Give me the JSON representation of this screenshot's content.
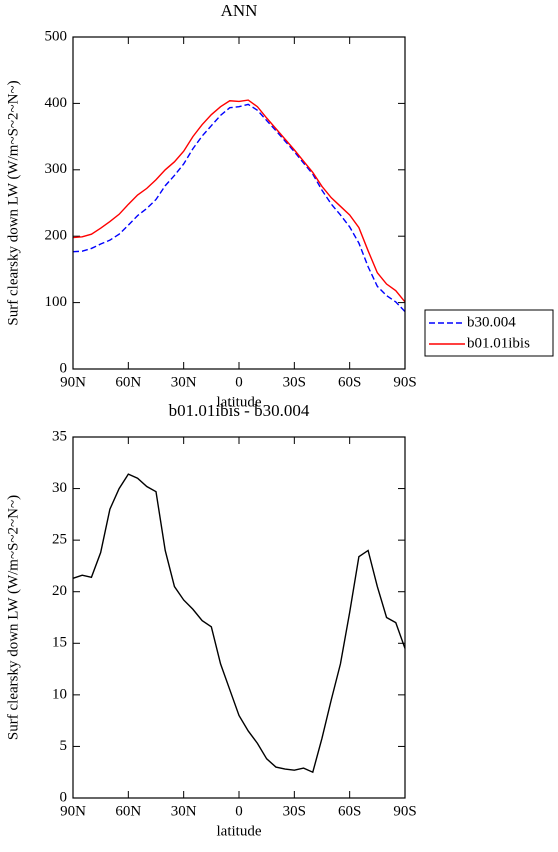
{
  "chart_data": [
    {
      "type": "line",
      "title": "ANN",
      "xlabel": "latitude",
      "ylabel": "Surf clearsky down LW (W/m~S~2~N~)",
      "x": [
        90,
        85,
        80,
        75,
        70,
        65,
        60,
        55,
        50,
        45,
        40,
        35,
        30,
        25,
        20,
        15,
        10,
        5,
        0,
        -5,
        -10,
        -15,
        -20,
        -25,
        -30,
        -35,
        -40,
        -45,
        -50,
        -55,
        -60,
        -65,
        -70,
        -75,
        -80,
        -85,
        -90
      ],
      "xlim": [
        90,
        -90
      ],
      "xticks": [
        {
          "value": 90,
          "label": "90N"
        },
        {
          "value": 60,
          "label": "60N"
        },
        {
          "value": 30,
          "label": "30N"
        },
        0,
        {
          "value": -30,
          "label": "30S"
        },
        {
          "value": -60,
          "label": "60S"
        },
        {
          "value": -90,
          "label": "90S"
        }
      ],
      "ylim": [
        0,
        500
      ],
      "yticks": [
        0,
        100,
        200,
        300,
        400,
        500
      ],
      "legend": "right",
      "series": [
        {
          "name": "b30.004",
          "color": "#0000ff",
          "dash": true,
          "values": [
            176.7,
            177.4,
            181.6,
            188.2,
            194,
            203,
            216.6,
            231,
            241.8,
            255.3,
            276,
            291.5,
            308.8,
            331.7,
            350.8,
            366.4,
            382,
            393.5,
            395,
            398.5,
            389.7,
            374.2,
            359,
            343.2,
            327.3,
            310.1,
            293.5,
            269.2,
            248.5,
            232,
            214,
            189.6,
            154,
            124.5,
            110.5,
            101,
            86.5
          ]
        },
        {
          "name": "b01.01ibis",
          "color": "#ff0000",
          "dash": false,
          "values": [
            198,
            199,
            203,
            212,
            222,
            233,
            248,
            262,
            272,
            285,
            300,
            312,
            328,
            350,
            368,
            383,
            395,
            404,
            403,
            405,
            395,
            378,
            362,
            346,
            330,
            313,
            296,
            275,
            258,
            245,
            232,
            213,
            178,
            145,
            128,
            118,
            101
          ]
        }
      ]
    },
    {
      "type": "line",
      "title": "b01.01ibis - b30.004",
      "xlabel": "latitude",
      "ylabel": "Surf clearsky down LW (W/m~S~2~N~)",
      "x": [
        90,
        85,
        80,
        75,
        70,
        65,
        60,
        55,
        50,
        45,
        40,
        35,
        30,
        25,
        20,
        15,
        10,
        5,
        0,
        -5,
        -10,
        -15,
        -20,
        -25,
        -30,
        -35,
        -40,
        -45,
        -50,
        -55,
        -60,
        -65,
        -70,
        -75,
        -80,
        -85,
        -90
      ],
      "xlim": [
        90,
        -90
      ],
      "xticks": [
        {
          "value": 90,
          "label": "90N"
        },
        {
          "value": 60,
          "label": "60N"
        },
        {
          "value": 30,
          "label": "30N"
        },
        0,
        {
          "value": -30,
          "label": "30S"
        },
        {
          "value": -60,
          "label": "60S"
        },
        {
          "value": -90,
          "label": "90S"
        }
      ],
      "ylim": [
        0,
        35
      ],
      "yticks": [
        0,
        5,
        10,
        15,
        20,
        25,
        30,
        35
      ],
      "series": [
        {
          "color": "#000000",
          "dash": false,
          "values": [
            21.3,
            21.6,
            21.4,
            23.8,
            28,
            30,
            31.4,
            31,
            30.2,
            29.7,
            24,
            20.5,
            19.2,
            18.3,
            17.2,
            16.6,
            13,
            10.5,
            8,
            6.5,
            5.3,
            3.8,
            3.0,
            2.8,
            2.7,
            2.9,
            2.5,
            5.8,
            9.5,
            13,
            18,
            23.4,
            24,
            20.5,
            17.5,
            17,
            14.5
          ]
        }
      ]
    }
  ]
}
